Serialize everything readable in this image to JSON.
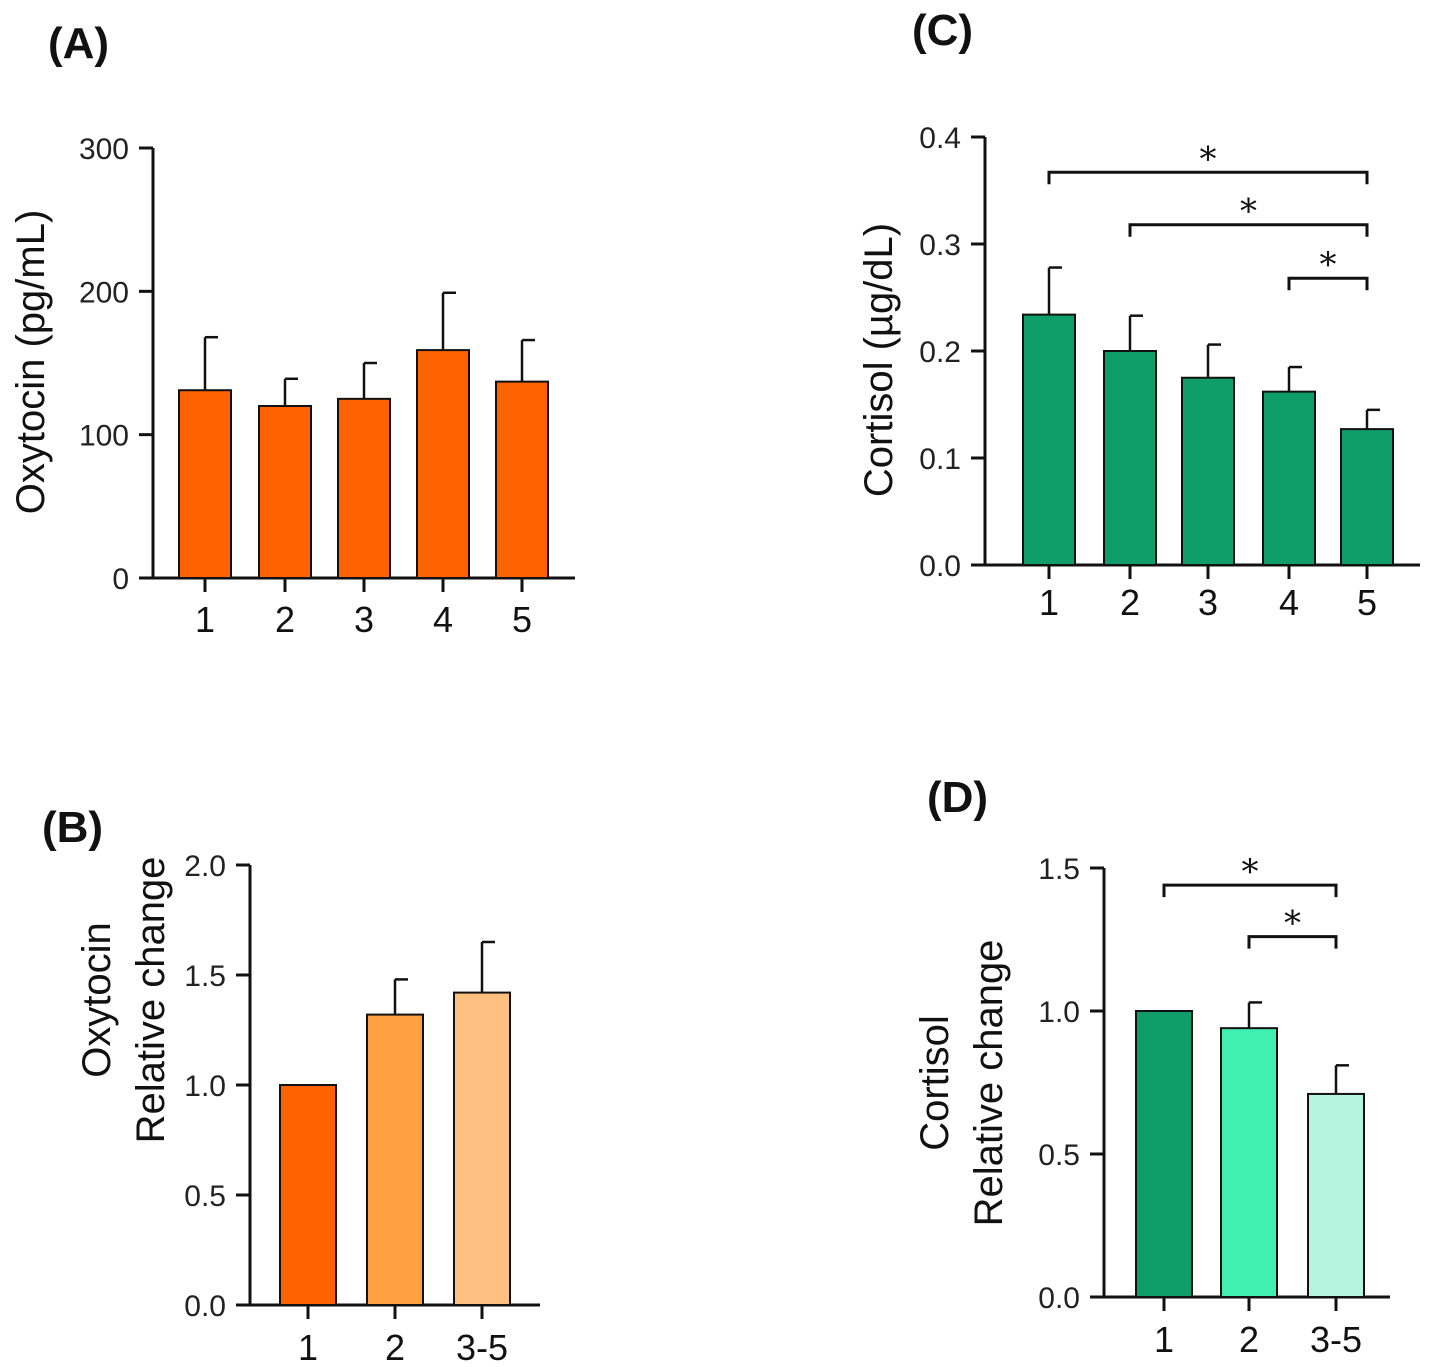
{
  "figure": {
    "panels": [
      "(A)",
      "(B)",
      "(C)",
      "(D)"
    ]
  },
  "chart_data": [
    {
      "id": "A",
      "panel_label": "(A)",
      "type": "bar",
      "ylabel_lines": [
        "Oxytocin (pg/mL)"
      ],
      "categories": [
        "1",
        "2",
        "3",
        "4",
        "5"
      ],
      "values": [
        131,
        120,
        125,
        159,
        137
      ],
      "errors": [
        37,
        19,
        25,
        40,
        29
      ],
      "colors": [
        "#ff6200",
        "#ff6200",
        "#ff6200",
        "#ff6200",
        "#ff6200"
      ],
      "ylim": [
        0,
        300
      ],
      "yticks": [
        0,
        100,
        200,
        300
      ],
      "ytick_labels": [
        "0",
        "100",
        "200",
        "300"
      ],
      "significance": []
    },
    {
      "id": "B",
      "panel_label": "(B)",
      "type": "bar",
      "ylabel_lines": [
        "Oxytocin",
        "Relative change"
      ],
      "categories": [
        "1",
        "2",
        "3-5"
      ],
      "values": [
        1.0,
        1.32,
        1.42
      ],
      "errors": [
        0,
        0.16,
        0.23
      ],
      "colors": [
        "#ff6200",
        "#ffa040",
        "#ffc080"
      ],
      "ylim": [
        0,
        2.0
      ],
      "yticks": [
        0,
        0.5,
        1.0,
        1.5,
        2.0
      ],
      "ytick_labels": [
        "0.0",
        "0.5",
        "1.0",
        "1.5",
        "2.0"
      ],
      "significance": []
    },
    {
      "id": "C",
      "panel_label": "(C)",
      "type": "bar",
      "ylabel_lines": [
        "Cortisol (µg/dL)"
      ],
      "categories": [
        "1",
        "2",
        "3",
        "4",
        "5"
      ],
      "values": [
        0.234,
        0.2,
        0.175,
        0.162,
        0.127
      ],
      "errors": [
        0.044,
        0.033,
        0.031,
        0.023,
        0.018
      ],
      "colors": [
        "#0f9e69",
        "#0f9e69",
        "#0f9e69",
        "#0f9e69",
        "#0f9e69"
      ],
      "ylim": [
        0,
        0.4
      ],
      "yticks": [
        0,
        0.1,
        0.2,
        0.3,
        0.4
      ],
      "ytick_labels": [
        "0.0",
        "0.1",
        "0.2",
        "0.3",
        "0.4"
      ],
      "significance": [
        {
          "from": 0,
          "to": 4,
          "y": 0.367,
          "label": "*"
        },
        {
          "from": 1,
          "to": 4,
          "y": 0.318,
          "label": "*"
        },
        {
          "from": 3,
          "to": 4,
          "y": 0.268,
          "label": "*"
        }
      ]
    },
    {
      "id": "D",
      "panel_label": "(D)",
      "type": "bar",
      "ylabel_lines": [
        "Cortisol",
        "Relative change"
      ],
      "categories": [
        "1",
        "2",
        "3-5"
      ],
      "values": [
        1.0,
        0.94,
        0.71
      ],
      "errors": [
        0,
        0.09,
        0.1
      ],
      "colors": [
        "#0f9e69",
        "#40f0b0",
        "#b4f4de"
      ],
      "ylim": [
        0,
        1.5
      ],
      "yticks": [
        0,
        0.5,
        1.0,
        1.5
      ],
      "ytick_labels": [
        "0.0",
        "0.5",
        "1.0",
        "1.5"
      ],
      "significance": [
        {
          "from": 0,
          "to": 2,
          "y": 1.44,
          "label": "*"
        },
        {
          "from": 1,
          "to": 2,
          "y": 1.26,
          "label": "*"
        }
      ]
    }
  ]
}
